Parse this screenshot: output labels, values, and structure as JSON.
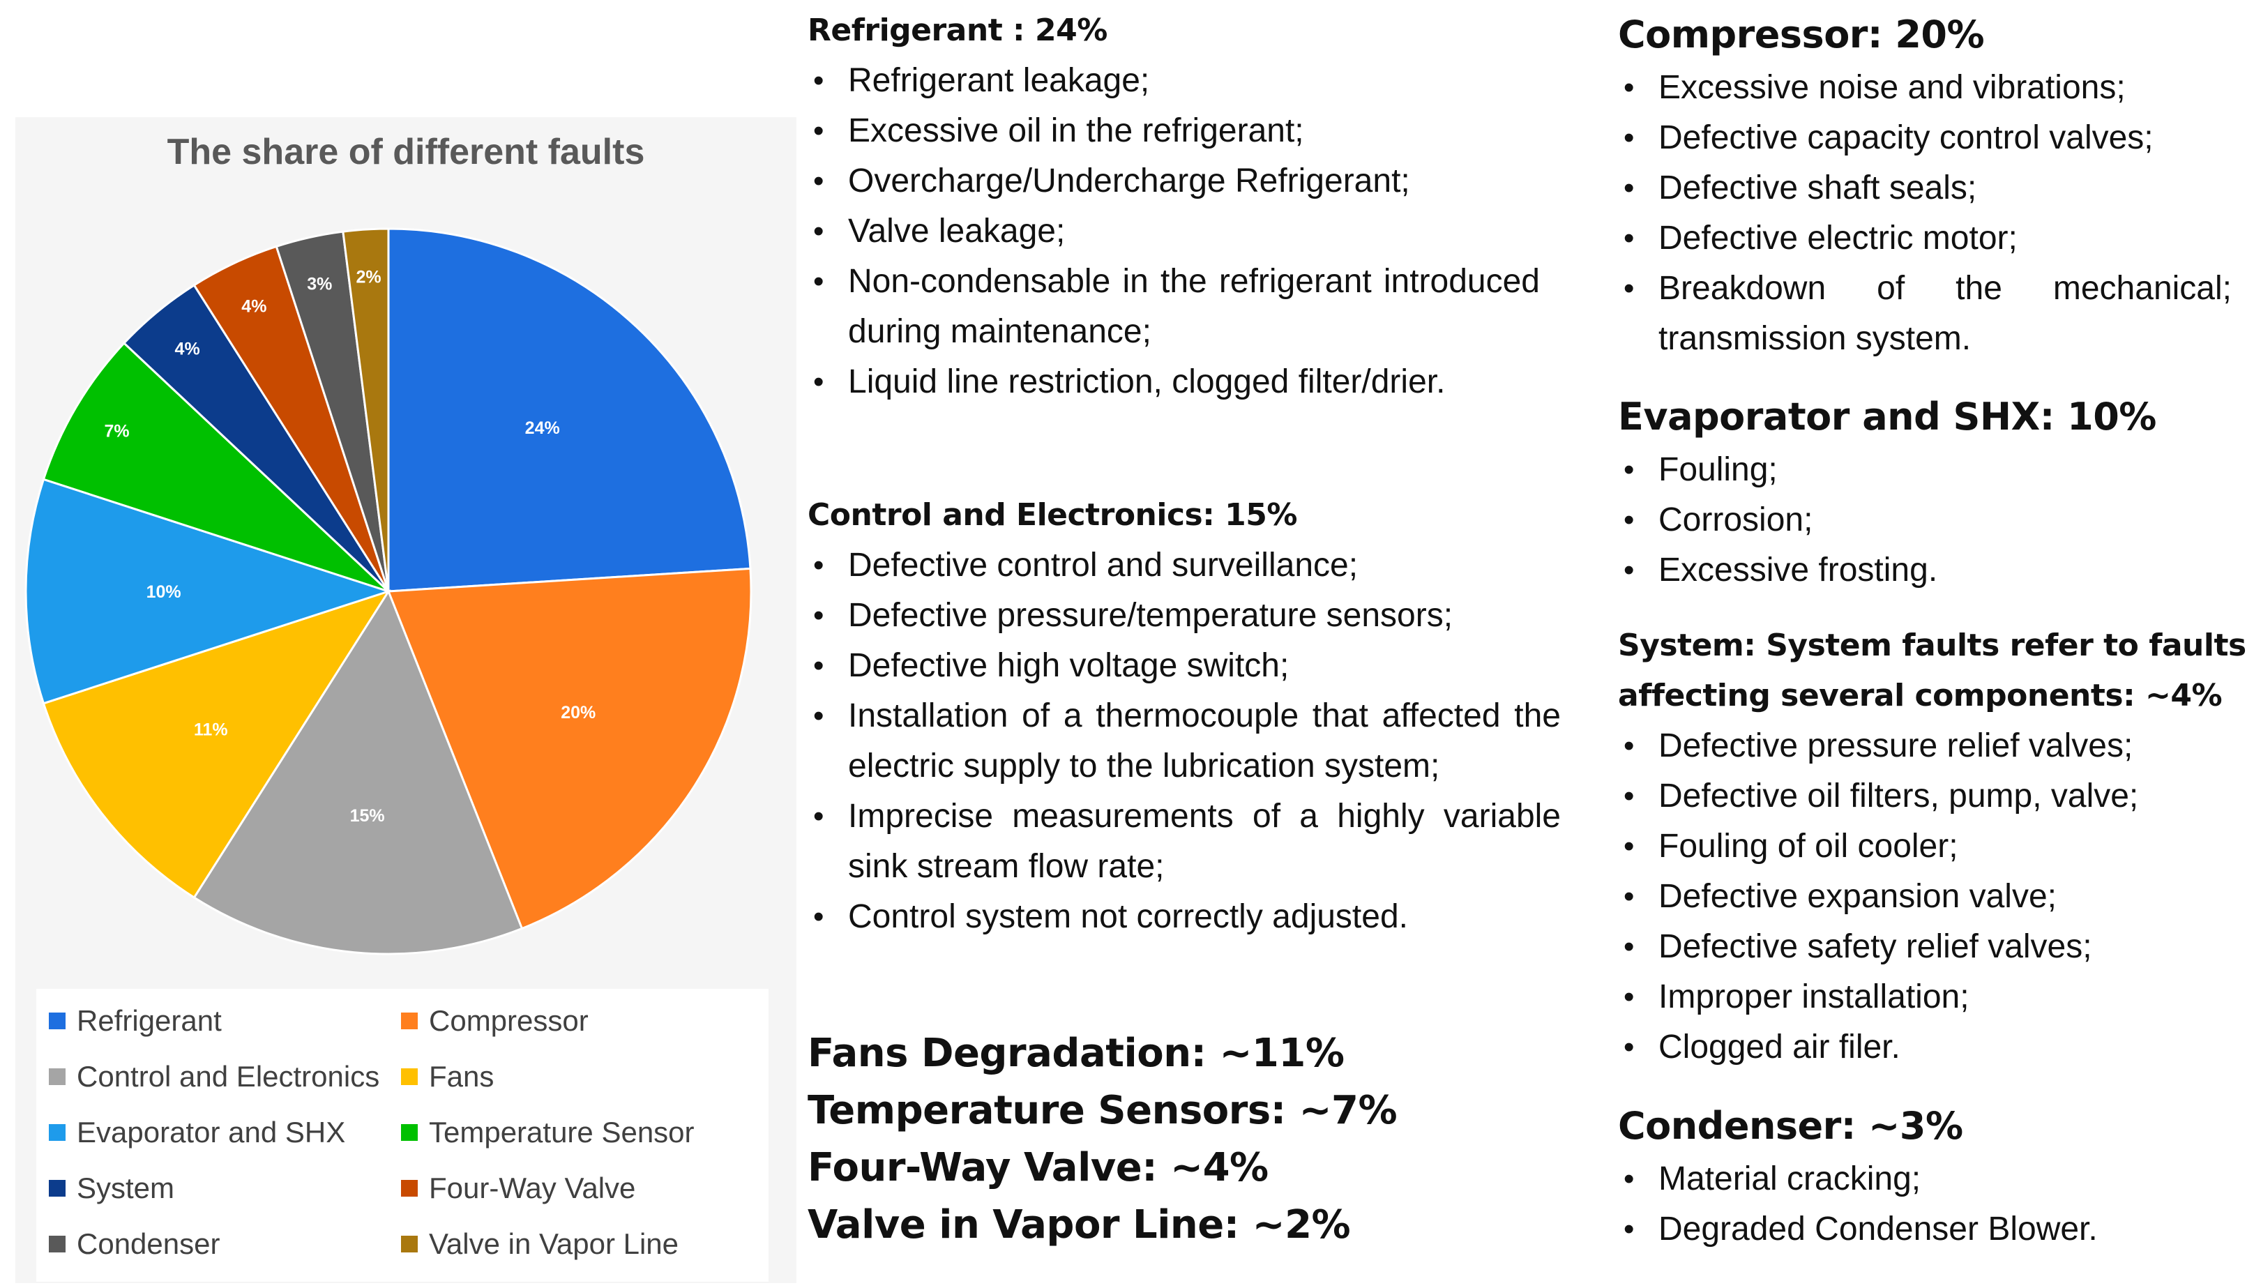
{
  "chart_data": {
    "type": "pie",
    "title": "The share of different faults",
    "slices": [
      {
        "name": "Refrigerant",
        "value": 24,
        "label": "24%",
        "color": "#1E6FE0"
      },
      {
        "name": "Compressor",
        "value": 20,
        "label": "20%",
        "color": "#FF7F1E"
      },
      {
        "name": "Control and Electronics",
        "value": 15,
        "label": "15%",
        "color": "#A5A5A5"
      },
      {
        "name": "Fans",
        "value": 11,
        "label": "11%",
        "color": "#FFC000"
      },
      {
        "name": "Evaporator and SHX",
        "value": 10,
        "label": "10%",
        "color": "#1E9BEB"
      },
      {
        "name": "Temperature Sensor",
        "value": 7,
        "label": "7%",
        "color": "#00C000"
      },
      {
        "name": "System",
        "value": 4,
        "label": "4%",
        "color": "#0C3C8C"
      },
      {
        "name": "Four-Way Valve",
        "value": 4,
        "label": "4%",
        "color": "#C84A00"
      },
      {
        "name": "Condenser",
        "value": 3,
        "label": "3%",
        "color": "#595959"
      },
      {
        "name": "Valve in Vapor Line",
        "value": 2,
        "label": "2%",
        "color": "#A9780F"
      }
    ],
    "legend_position": "bottom"
  },
  "sections": {
    "refrigerant": {
      "heading": "Refrigerant : 24%",
      "items": [
        "Refrigerant leakage;",
        "Excessive oil in the refrigerant;",
        "Overcharge/Undercharge Refrigerant;",
        "Valve leakage;",
        "Non-condensable in the refrigerant introduced during maintenance;",
        "Liquid line restriction, clogged filter/drier."
      ]
    },
    "control": {
      "heading": "Control and Electronics: 15%",
      "items": [
        "Defective control and surveillance;",
        "Defective pressure/temperature sensors;",
        "Defective high voltage switch;",
        "Installation of a thermocouple that affected the electric supply to the lubrication system;",
        "Imprecise measurements of a highly variable sink stream flow rate;",
        "Control system not correctly adjusted."
      ]
    },
    "others": {
      "fans": "Fans Degradation: ~11%",
      "temp_sensors": "Temperature Sensors: ~7%",
      "four_way": "Four-Way Valve: ~4%",
      "vapor_line": "Valve in Vapor Line: ~2%"
    },
    "compressor": {
      "heading": "Compressor: 20%",
      "items": [
        "Excessive noise and vibrations;",
        "Defective capacity control valves;",
        "Defective shaft seals;",
        "Defective electric motor;",
        "Breakdown of the mechanical; transmission system."
      ]
    },
    "evaporator": {
      "heading": "Evaporator and SHX: 10%",
      "items": [
        "Fouling;",
        "Corrosion;",
        "Excessive frosting."
      ]
    },
    "system": {
      "heading_line1": "System: System faults refer to faults",
      "heading_line2": "affecting several components: ~4%",
      "items": [
        "Defective pressure relief valves;",
        "Defective oil filters, pump, valve;",
        "Fouling of oil cooler;",
        "Defective expansion valve;",
        "Defective safety relief valves;",
        "Improper installation;",
        "Clogged air filer."
      ]
    },
    "condenser": {
      "heading": "Condenser: ~3%",
      "items": [
        "Material cracking;",
        "Degraded Condenser Blower."
      ]
    }
  }
}
